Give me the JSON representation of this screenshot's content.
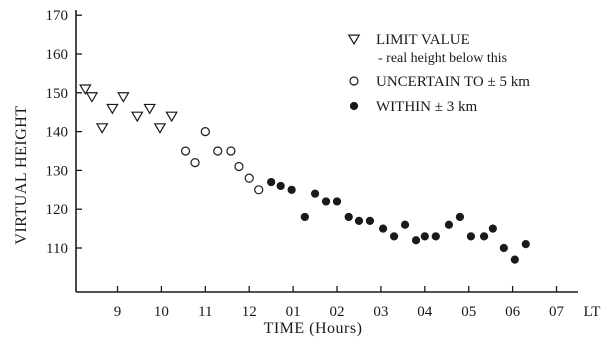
{
  "chart_data": {
    "type": "scatter",
    "xlabel": "TIME (Hours)",
    "ylabel": "VIRTUAL HEIGHT",
    "x_unit_label": "LT",
    "x_tick_labels": [
      "9",
      "10",
      "11",
      "12",
      "01",
      "02",
      "03",
      "04",
      "05",
      "06",
      "07"
    ],
    "y_ticks": [
      110,
      120,
      130,
      140,
      150,
      160,
      170
    ],
    "xlim_hours_from_8": [
      0.1,
      11.0
    ],
    "ylim": [
      100,
      176
    ],
    "grid": false,
    "legend": {
      "placement": "top-right",
      "entries": [
        {
          "marker": "triangle-down-open",
          "label": "LIMIT VALUE",
          "sublabel": "- real height below this"
        },
        {
          "marker": "circle-open",
          "label": "UNCERTAIN TO ± 5 km"
        },
        {
          "marker": "circle-filled",
          "label": "WITHIN ± 3 km"
        }
      ]
    },
    "series": [
      {
        "marker": "triangle-down-open",
        "points": [
          {
            "t": "08:16",
            "h": 151
          },
          {
            "t": "08:25",
            "h": 149
          },
          {
            "t": "08:39",
            "h": 141
          },
          {
            "t": "08:53",
            "h": 146
          },
          {
            "t": "09:08",
            "h": 149
          },
          {
            "t": "09:27",
            "h": 144
          },
          {
            "t": "09:44",
            "h": 146
          },
          {
            "t": "09:58",
            "h": 141
          },
          {
            "t": "10:14",
            "h": 144
          }
        ]
      },
      {
        "marker": "circle-open",
        "points": [
          {
            "t": "10:33",
            "h": 135
          },
          {
            "t": "10:46",
            "h": 132
          },
          {
            "t": "11:00",
            "h": 140
          },
          {
            "t": "11:17",
            "h": 135
          },
          {
            "t": "11:35",
            "h": 135
          },
          {
            "t": "11:46",
            "h": 131
          },
          {
            "t": "12:00",
            "h": 128
          },
          {
            "t": "12:13",
            "h": 125
          }
        ]
      },
      {
        "marker": "circle-filled",
        "points": [
          {
            "t": "12:30",
            "h": 127
          },
          {
            "t": "12:43",
            "h": 126
          },
          {
            "t": "12:58",
            "h": 125
          },
          {
            "t": "13:16",
            "h": 118
          },
          {
            "t": "13:30",
            "h": 124
          },
          {
            "t": "13:45",
            "h": 122
          },
          {
            "t": "14:00",
            "h": 122
          },
          {
            "t": "14:16",
            "h": 118
          },
          {
            "t": "14:30",
            "h": 117
          },
          {
            "t": "14:45",
            "h": 117
          },
          {
            "t": "15:03",
            "h": 115
          },
          {
            "t": "15:18",
            "h": 113
          },
          {
            "t": "15:33",
            "h": 116
          },
          {
            "t": "15:48",
            "h": 112
          },
          {
            "t": "16:00",
            "h": 113
          },
          {
            "t": "16:15",
            "h": 113
          },
          {
            "t": "16:33",
            "h": 116
          },
          {
            "t": "16:48",
            "h": 118
          },
          {
            "t": "17:03",
            "h": 113
          },
          {
            "t": "17:21",
            "h": 113
          },
          {
            "t": "17:33",
            "h": 115
          },
          {
            "t": "17:48",
            "h": 110
          },
          {
            "t": "18:03",
            "h": 107
          },
          {
            "t": "18:18",
            "h": 111
          }
        ]
      }
    ]
  }
}
